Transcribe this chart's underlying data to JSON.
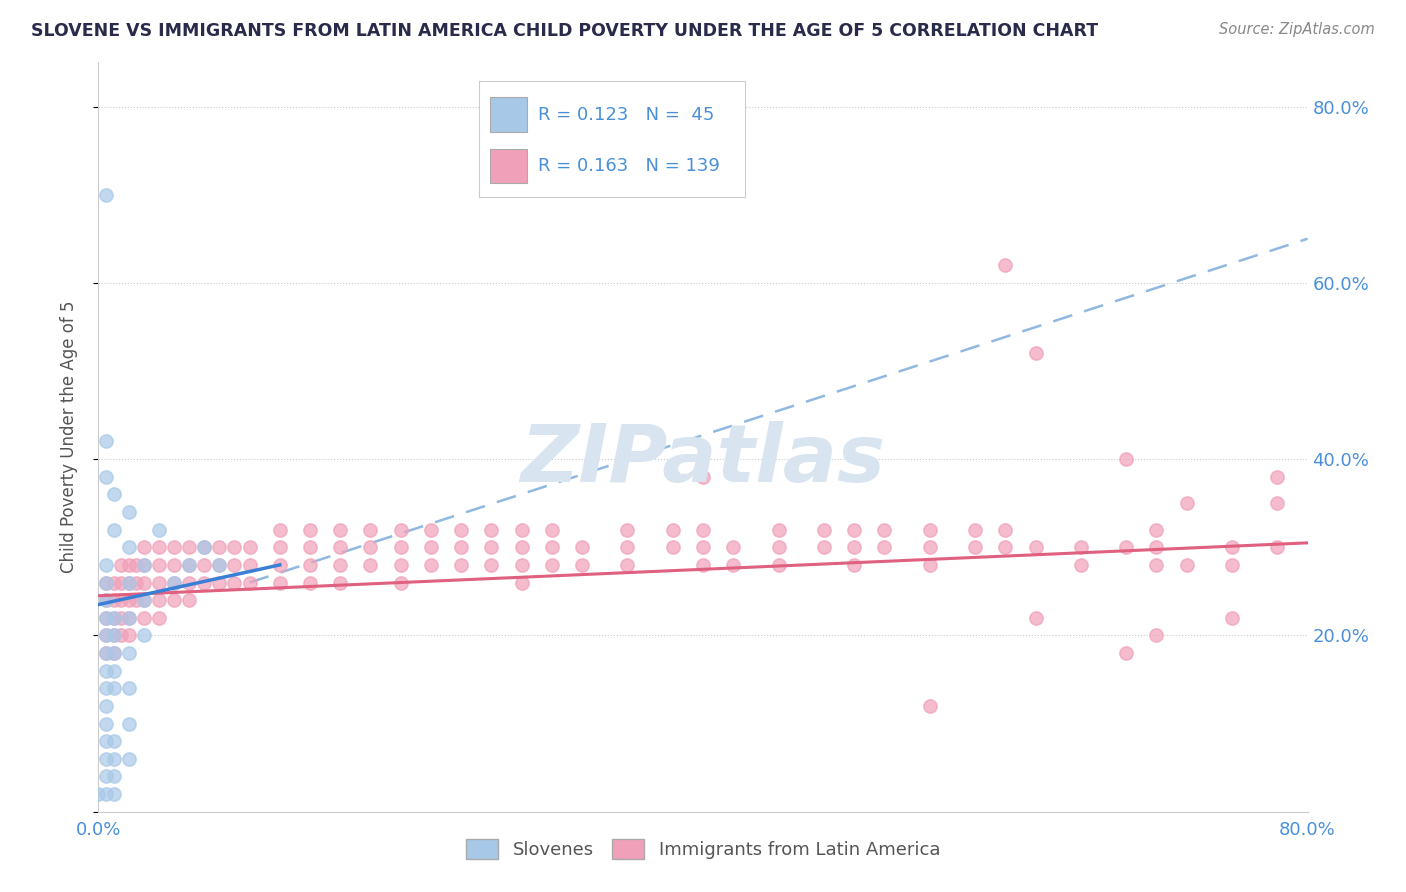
{
  "title": "SLOVENE VS IMMIGRANTS FROM LATIN AMERICA CHILD POVERTY UNDER THE AGE OF 5 CORRELATION CHART",
  "source": "Source: ZipAtlas.com",
  "ylabel": "Child Poverty Under the Age of 5",
  "xlim": [
    0.0,
    0.8
  ],
  "ylim": [
    0.0,
    0.85
  ],
  "ytick_positions": [
    0.0,
    0.2,
    0.4,
    0.6,
    0.8
  ],
  "yticklabels": [
    "",
    "20.0%",
    "40.0%",
    "60.0%",
    "80.0%"
  ],
  "legend_label1": "Slovenes",
  "legend_label2": "Immigrants from Latin America",
  "color_blue": "#a8c8e8",
  "color_pink": "#f0a0b8",
  "trendline_blue": "#3a7fd5",
  "trendline_pink": "#e06080",
  "trendline_dashed_color": "#90b8e0",
  "watermark_color": "#d8e4f0",
  "title_color": "#2a2a4a",
  "axis_label_color": "#4a90d9",
  "tick_color": "#888888",
  "blue_scatter": [
    [
      0.005,
      0.7
    ],
    [
      0.005,
      0.42
    ],
    [
      0.005,
      0.38
    ],
    [
      0.01,
      0.36
    ],
    [
      0.01,
      0.32
    ],
    [
      0.02,
      0.34
    ],
    [
      0.02,
      0.3
    ],
    [
      0.005,
      0.28
    ],
    [
      0.005,
      0.26
    ],
    [
      0.005,
      0.24
    ],
    [
      0.005,
      0.22
    ],
    [
      0.005,
      0.2
    ],
    [
      0.01,
      0.22
    ],
    [
      0.01,
      0.2
    ],
    [
      0.01,
      0.18
    ],
    [
      0.01,
      0.16
    ],
    [
      0.01,
      0.14
    ],
    [
      0.005,
      0.18
    ],
    [
      0.005,
      0.16
    ],
    [
      0.005,
      0.14
    ],
    [
      0.005,
      0.12
    ],
    [
      0.005,
      0.1
    ],
    [
      0.005,
      0.08
    ],
    [
      0.005,
      0.06
    ],
    [
      0.005,
      0.04
    ],
    [
      0.01,
      0.08
    ],
    [
      0.01,
      0.06
    ],
    [
      0.01,
      0.04
    ],
    [
      0.01,
      0.02
    ],
    [
      0.005,
      0.02
    ],
    [
      0.02,
      0.26
    ],
    [
      0.02,
      0.22
    ],
    [
      0.02,
      0.18
    ],
    [
      0.02,
      0.14
    ],
    [
      0.02,
      0.1
    ],
    [
      0.02,
      0.06
    ],
    [
      0.03,
      0.28
    ],
    [
      0.03,
      0.24
    ],
    [
      0.03,
      0.2
    ],
    [
      0.04,
      0.32
    ],
    [
      0.05,
      0.26
    ],
    [
      0.06,
      0.28
    ],
    [
      0.07,
      0.3
    ],
    [
      0.08,
      0.28
    ],
    [
      0.0,
      0.02
    ]
  ],
  "pink_scatter": [
    [
      0.005,
      0.26
    ],
    [
      0.005,
      0.24
    ],
    [
      0.005,
      0.22
    ],
    [
      0.005,
      0.2
    ],
    [
      0.005,
      0.18
    ],
    [
      0.01,
      0.26
    ],
    [
      0.01,
      0.24
    ],
    [
      0.01,
      0.22
    ],
    [
      0.01,
      0.2
    ],
    [
      0.01,
      0.18
    ],
    [
      0.015,
      0.28
    ],
    [
      0.015,
      0.26
    ],
    [
      0.015,
      0.24
    ],
    [
      0.015,
      0.22
    ],
    [
      0.015,
      0.2
    ],
    [
      0.02,
      0.28
    ],
    [
      0.02,
      0.26
    ],
    [
      0.02,
      0.24
    ],
    [
      0.02,
      0.22
    ],
    [
      0.02,
      0.2
    ],
    [
      0.025,
      0.28
    ],
    [
      0.025,
      0.26
    ],
    [
      0.025,
      0.24
    ],
    [
      0.03,
      0.3
    ],
    [
      0.03,
      0.28
    ],
    [
      0.03,
      0.26
    ],
    [
      0.03,
      0.24
    ],
    [
      0.03,
      0.22
    ],
    [
      0.04,
      0.3
    ],
    [
      0.04,
      0.28
    ],
    [
      0.04,
      0.26
    ],
    [
      0.04,
      0.24
    ],
    [
      0.04,
      0.22
    ],
    [
      0.05,
      0.3
    ],
    [
      0.05,
      0.28
    ],
    [
      0.05,
      0.26
    ],
    [
      0.05,
      0.24
    ],
    [
      0.06,
      0.3
    ],
    [
      0.06,
      0.28
    ],
    [
      0.06,
      0.26
    ],
    [
      0.06,
      0.24
    ],
    [
      0.07,
      0.3
    ],
    [
      0.07,
      0.28
    ],
    [
      0.07,
      0.26
    ],
    [
      0.08,
      0.3
    ],
    [
      0.08,
      0.28
    ],
    [
      0.08,
      0.26
    ],
    [
      0.09,
      0.3
    ],
    [
      0.09,
      0.28
    ],
    [
      0.09,
      0.26
    ],
    [
      0.1,
      0.3
    ],
    [
      0.1,
      0.28
    ],
    [
      0.1,
      0.26
    ],
    [
      0.12,
      0.3
    ],
    [
      0.12,
      0.28
    ],
    [
      0.12,
      0.26
    ],
    [
      0.12,
      0.32
    ],
    [
      0.14,
      0.3
    ],
    [
      0.14,
      0.28
    ],
    [
      0.14,
      0.32
    ],
    [
      0.14,
      0.26
    ],
    [
      0.16,
      0.3
    ],
    [
      0.16,
      0.28
    ],
    [
      0.16,
      0.32
    ],
    [
      0.16,
      0.26
    ],
    [
      0.18,
      0.3
    ],
    [
      0.18,
      0.28
    ],
    [
      0.18,
      0.32
    ],
    [
      0.2,
      0.3
    ],
    [
      0.2,
      0.28
    ],
    [
      0.2,
      0.32
    ],
    [
      0.2,
      0.26
    ],
    [
      0.22,
      0.3
    ],
    [
      0.22,
      0.28
    ],
    [
      0.22,
      0.32
    ],
    [
      0.24,
      0.3
    ],
    [
      0.24,
      0.28
    ],
    [
      0.24,
      0.32
    ],
    [
      0.26,
      0.3
    ],
    [
      0.26,
      0.28
    ],
    [
      0.26,
      0.32
    ],
    [
      0.28,
      0.3
    ],
    [
      0.28,
      0.28
    ],
    [
      0.28,
      0.32
    ],
    [
      0.28,
      0.26
    ],
    [
      0.3,
      0.3
    ],
    [
      0.3,
      0.28
    ],
    [
      0.3,
      0.32
    ],
    [
      0.32,
      0.3
    ],
    [
      0.32,
      0.28
    ],
    [
      0.35,
      0.3
    ],
    [
      0.35,
      0.28
    ],
    [
      0.35,
      0.32
    ],
    [
      0.38,
      0.3
    ],
    [
      0.38,
      0.32
    ],
    [
      0.4,
      0.3
    ],
    [
      0.4,
      0.28
    ],
    [
      0.4,
      0.32
    ],
    [
      0.4,
      0.38
    ],
    [
      0.42,
      0.3
    ],
    [
      0.42,
      0.28
    ],
    [
      0.45,
      0.3
    ],
    [
      0.45,
      0.32
    ],
    [
      0.45,
      0.28
    ],
    [
      0.48,
      0.3
    ],
    [
      0.48,
      0.32
    ],
    [
      0.5,
      0.3
    ],
    [
      0.5,
      0.28
    ],
    [
      0.5,
      0.32
    ],
    [
      0.52,
      0.3
    ],
    [
      0.52,
      0.32
    ],
    [
      0.55,
      0.3
    ],
    [
      0.55,
      0.28
    ],
    [
      0.55,
      0.32
    ],
    [
      0.58,
      0.3
    ],
    [
      0.58,
      0.32
    ],
    [
      0.6,
      0.3
    ],
    [
      0.6,
      0.62
    ],
    [
      0.6,
      0.32
    ],
    [
      0.62,
      0.3
    ],
    [
      0.62,
      0.52
    ],
    [
      0.65,
      0.3
    ],
    [
      0.65,
      0.28
    ],
    [
      0.68,
      0.4
    ],
    [
      0.68,
      0.3
    ],
    [
      0.7,
      0.3
    ],
    [
      0.7,
      0.28
    ],
    [
      0.7,
      0.32
    ],
    [
      0.72,
      0.35
    ],
    [
      0.72,
      0.28
    ],
    [
      0.75,
      0.3
    ],
    [
      0.75,
      0.28
    ],
    [
      0.78,
      0.35
    ],
    [
      0.78,
      0.3
    ],
    [
      0.55,
      0.12
    ],
    [
      0.62,
      0.22
    ],
    [
      0.68,
      0.18
    ],
    [
      0.7,
      0.2
    ],
    [
      0.75,
      0.22
    ],
    [
      0.78,
      0.38
    ]
  ],
  "blue_trend_x": [
    0.0,
    0.12
  ],
  "blue_trend_y": [
    0.235,
    0.28
  ],
  "pink_trend_x": [
    0.0,
    0.8
  ],
  "pink_trend_y": [
    0.245,
    0.305
  ],
  "dash_trend_x": [
    0.1,
    0.8
  ],
  "dash_trend_y": [
    0.26,
    0.65
  ]
}
